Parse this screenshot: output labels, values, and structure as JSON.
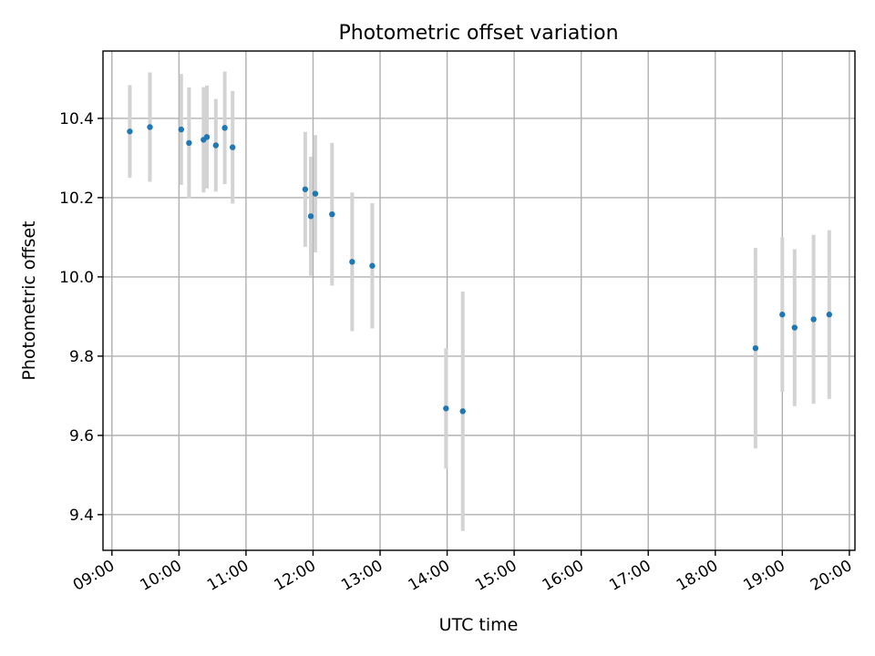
{
  "chart_data": {
    "type": "scatter",
    "title": "Photometric offset variation",
    "xlabel": "UTC time",
    "ylabel": "Photometric offset",
    "x_tick_labels": [
      "09:00",
      "10:00",
      "11:00",
      "12:00",
      "13:00",
      "14:00",
      "15:00",
      "16:00",
      "17:00",
      "18:00",
      "19:00",
      "20:00"
    ],
    "y_tick_labels": [
      "9.4",
      "9.6",
      "9.8",
      "10.0",
      "10.2",
      "10.4"
    ],
    "y_ticks": [
      9.4,
      9.6,
      9.8,
      10.0,
      10.2,
      10.4
    ],
    "xlim": [
      "08:52",
      "20:05"
    ],
    "ylim": [
      9.31,
      10.57
    ],
    "grid": true,
    "colors": {
      "point": "#1f77b4",
      "errorbar": "#d3d3d3"
    },
    "points": [
      {
        "x": "09:16",
        "y": 10.367,
        "err": 0.117
      },
      {
        "x": "09:34",
        "y": 10.378,
        "err": 0.138
      },
      {
        "x": "10:02",
        "y": 10.372,
        "err": 0.14
      },
      {
        "x": "10:09",
        "y": 10.338,
        "err": 0.14
      },
      {
        "x": "10:22",
        "y": 10.346,
        "err": 0.133
      },
      {
        "x": "10:25",
        "y": 10.353,
        "err": 0.13
      },
      {
        "x": "10:33",
        "y": 10.332,
        "err": 0.117
      },
      {
        "x": "10:41",
        "y": 10.376,
        "err": 0.142
      },
      {
        "x": "10:48",
        "y": 10.327,
        "err": 0.142
      },
      {
        "x": "11:53",
        "y": 10.221,
        "err": 0.145
      },
      {
        "x": "11:58",
        "y": 10.153,
        "err": 0.15
      },
      {
        "x": "12:02",
        "y": 10.21,
        "err": 0.148
      },
      {
        "x": "12:17",
        "y": 10.158,
        "err": 0.18
      },
      {
        "x": "12:35",
        "y": 10.038,
        "err": 0.175
      },
      {
        "x": "12:53",
        "y": 10.028,
        "err": 0.158
      },
      {
        "x": "13:59",
        "y": 9.668,
        "err": 0.152
      },
      {
        "x": "14:14",
        "y": 9.661,
        "err": 0.302
      },
      {
        "x": "18:36",
        "y": 9.82,
        "err": 0.253
      },
      {
        "x": "19:00",
        "y": 9.905,
        "err": 0.195
      },
      {
        "x": "19:11",
        "y": 9.872,
        "err": 0.198
      },
      {
        "x": "19:28",
        "y": 9.893,
        "err": 0.213
      },
      {
        "x": "19:42",
        "y": 9.905,
        "err": 0.213
      }
    ]
  }
}
